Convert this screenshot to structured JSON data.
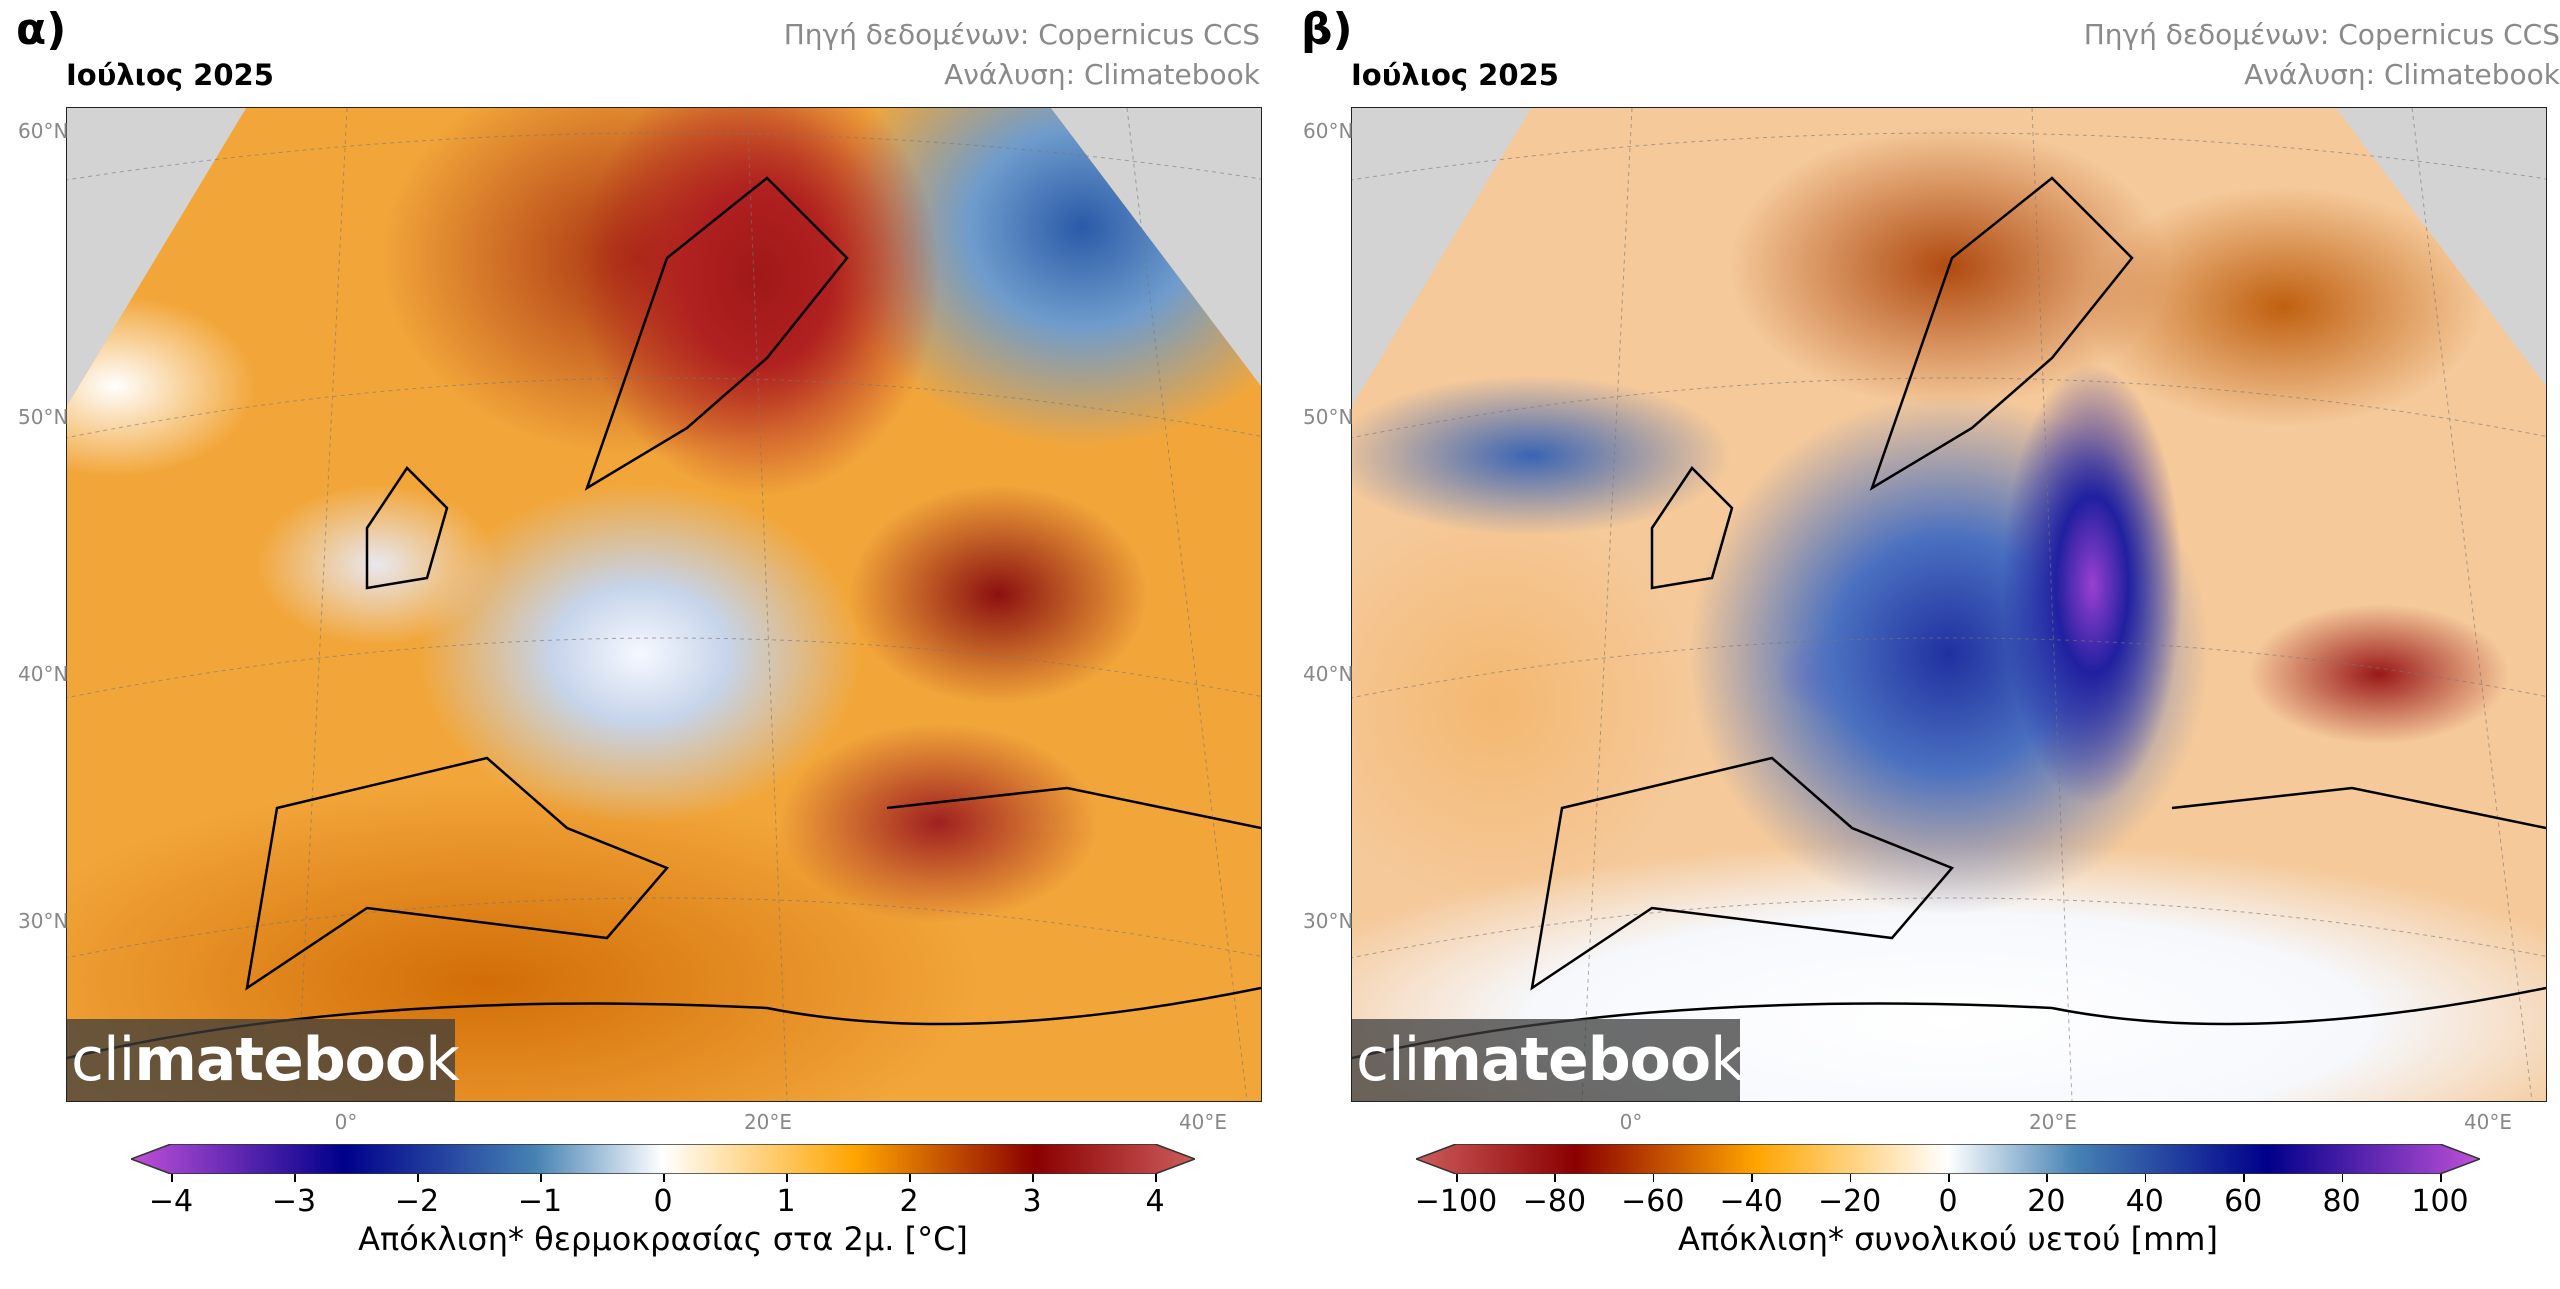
{
  "panels": [
    {
      "label": "α)",
      "month": "Ιούλιος 2025",
      "source": "Πηγή δεδομένων: Copernicus CCS",
      "analysis": "Ανάλυση: Climatebook",
      "watermark": {
        "light": "cli",
        "bold": "mateboo",
        "tail": "k"
      },
      "lat_labels": [
        "60°N",
        "50°N",
        "40°N",
        "30°N"
      ],
      "lon_labels": [
        "0°",
        "20°E",
        "40°E"
      ],
      "colorbar": {
        "ticks": [
          "−4",
          "−3",
          "−2",
          "−1",
          "0",
          "1",
          "2",
          "3",
          "4"
        ],
        "range": [
          -4,
          4
        ],
        "colors": [
          "#c050d8",
          "#00008b",
          "#4682b4",
          "#ffffff",
          "#ffa500",
          "#8b0000",
          "#cd5c5c"
        ],
        "label": "Απόκλιση* θερμοκρασίας στα 2μ. [°C]"
      },
      "variable": "2m temperature anomaly"
    },
    {
      "label": "β)",
      "month": "Ιούλιος 2025",
      "source": "Πηγή δεδομένων: Copernicus CCS",
      "analysis": "Ανάλυση: Climatebook",
      "watermark": {
        "light": "cli",
        "bold": "mateboo",
        "tail": "k"
      },
      "lat_labels": [
        "60°N",
        "50°N",
        "40°N",
        "30°N"
      ],
      "lon_labels": [
        "0°",
        "20°E",
        "40°E"
      ],
      "colorbar": {
        "ticks": [
          "−100",
          "−80",
          "−60",
          "−40",
          "−20",
          "0",
          "20",
          "40",
          "60",
          "80",
          "100"
        ],
        "range": [
          -100,
          100
        ],
        "colors": [
          "#cd5c5c",
          "#8b0000",
          "#ffa500",
          "#ffffff",
          "#4682b4",
          "#00008b",
          "#c050d8"
        ],
        "label": "Απόκλιση* συνολικού υετού [mm]"
      },
      "variable": "total precipitation anomaly"
    }
  ]
}
